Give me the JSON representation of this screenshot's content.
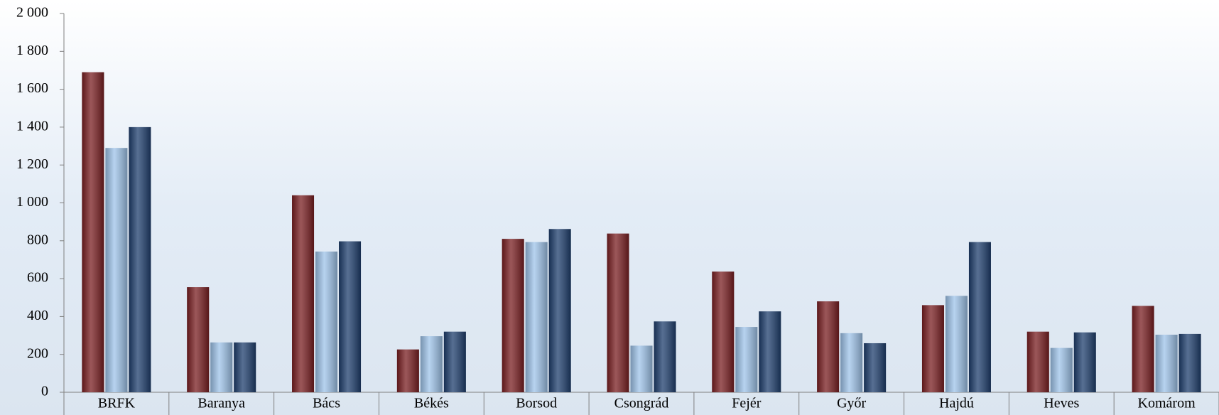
{
  "chart_data": {
    "type": "bar",
    "categories": [
      "BRFK",
      "Baranya",
      "Bács",
      "Békés",
      "Borsod",
      "Csongrád",
      "Fejér",
      "Győr",
      "Hajdú",
      "Heves",
      "Komárom"
    ],
    "series": [
      {
        "color": "#7a1f22",
        "values": [
          1690,
          555,
          1040,
          226,
          810,
          838,
          637,
          480,
          460,
          320,
          456
        ]
      },
      {
        "color": "#9fc4ea",
        "values": [
          1290,
          263,
          743,
          296,
          793,
          246,
          345,
          312,
          509,
          234,
          304
        ]
      },
      {
        "color": "#1f3f6e",
        "values": [
          1400,
          263,
          797,
          320,
          862,
          374,
          427,
          259,
          793,
          316,
          308
        ]
      }
    ],
    "ylim": [
      0,
      2000
    ],
    "yticks": [
      0,
      200,
      400,
      600,
      800,
      {
        "value": 1000,
        "label": "1 000"
      },
      {
        "value": 1200,
        "label": "1 200"
      },
      {
        "value": 1400,
        "label": "1 400"
      },
      {
        "value": 1600,
        "label": "1 600"
      },
      {
        "value": 1800,
        "label": "1 800"
      },
      {
        "value": 2000,
        "label": "2 000"
      }
    ]
  }
}
